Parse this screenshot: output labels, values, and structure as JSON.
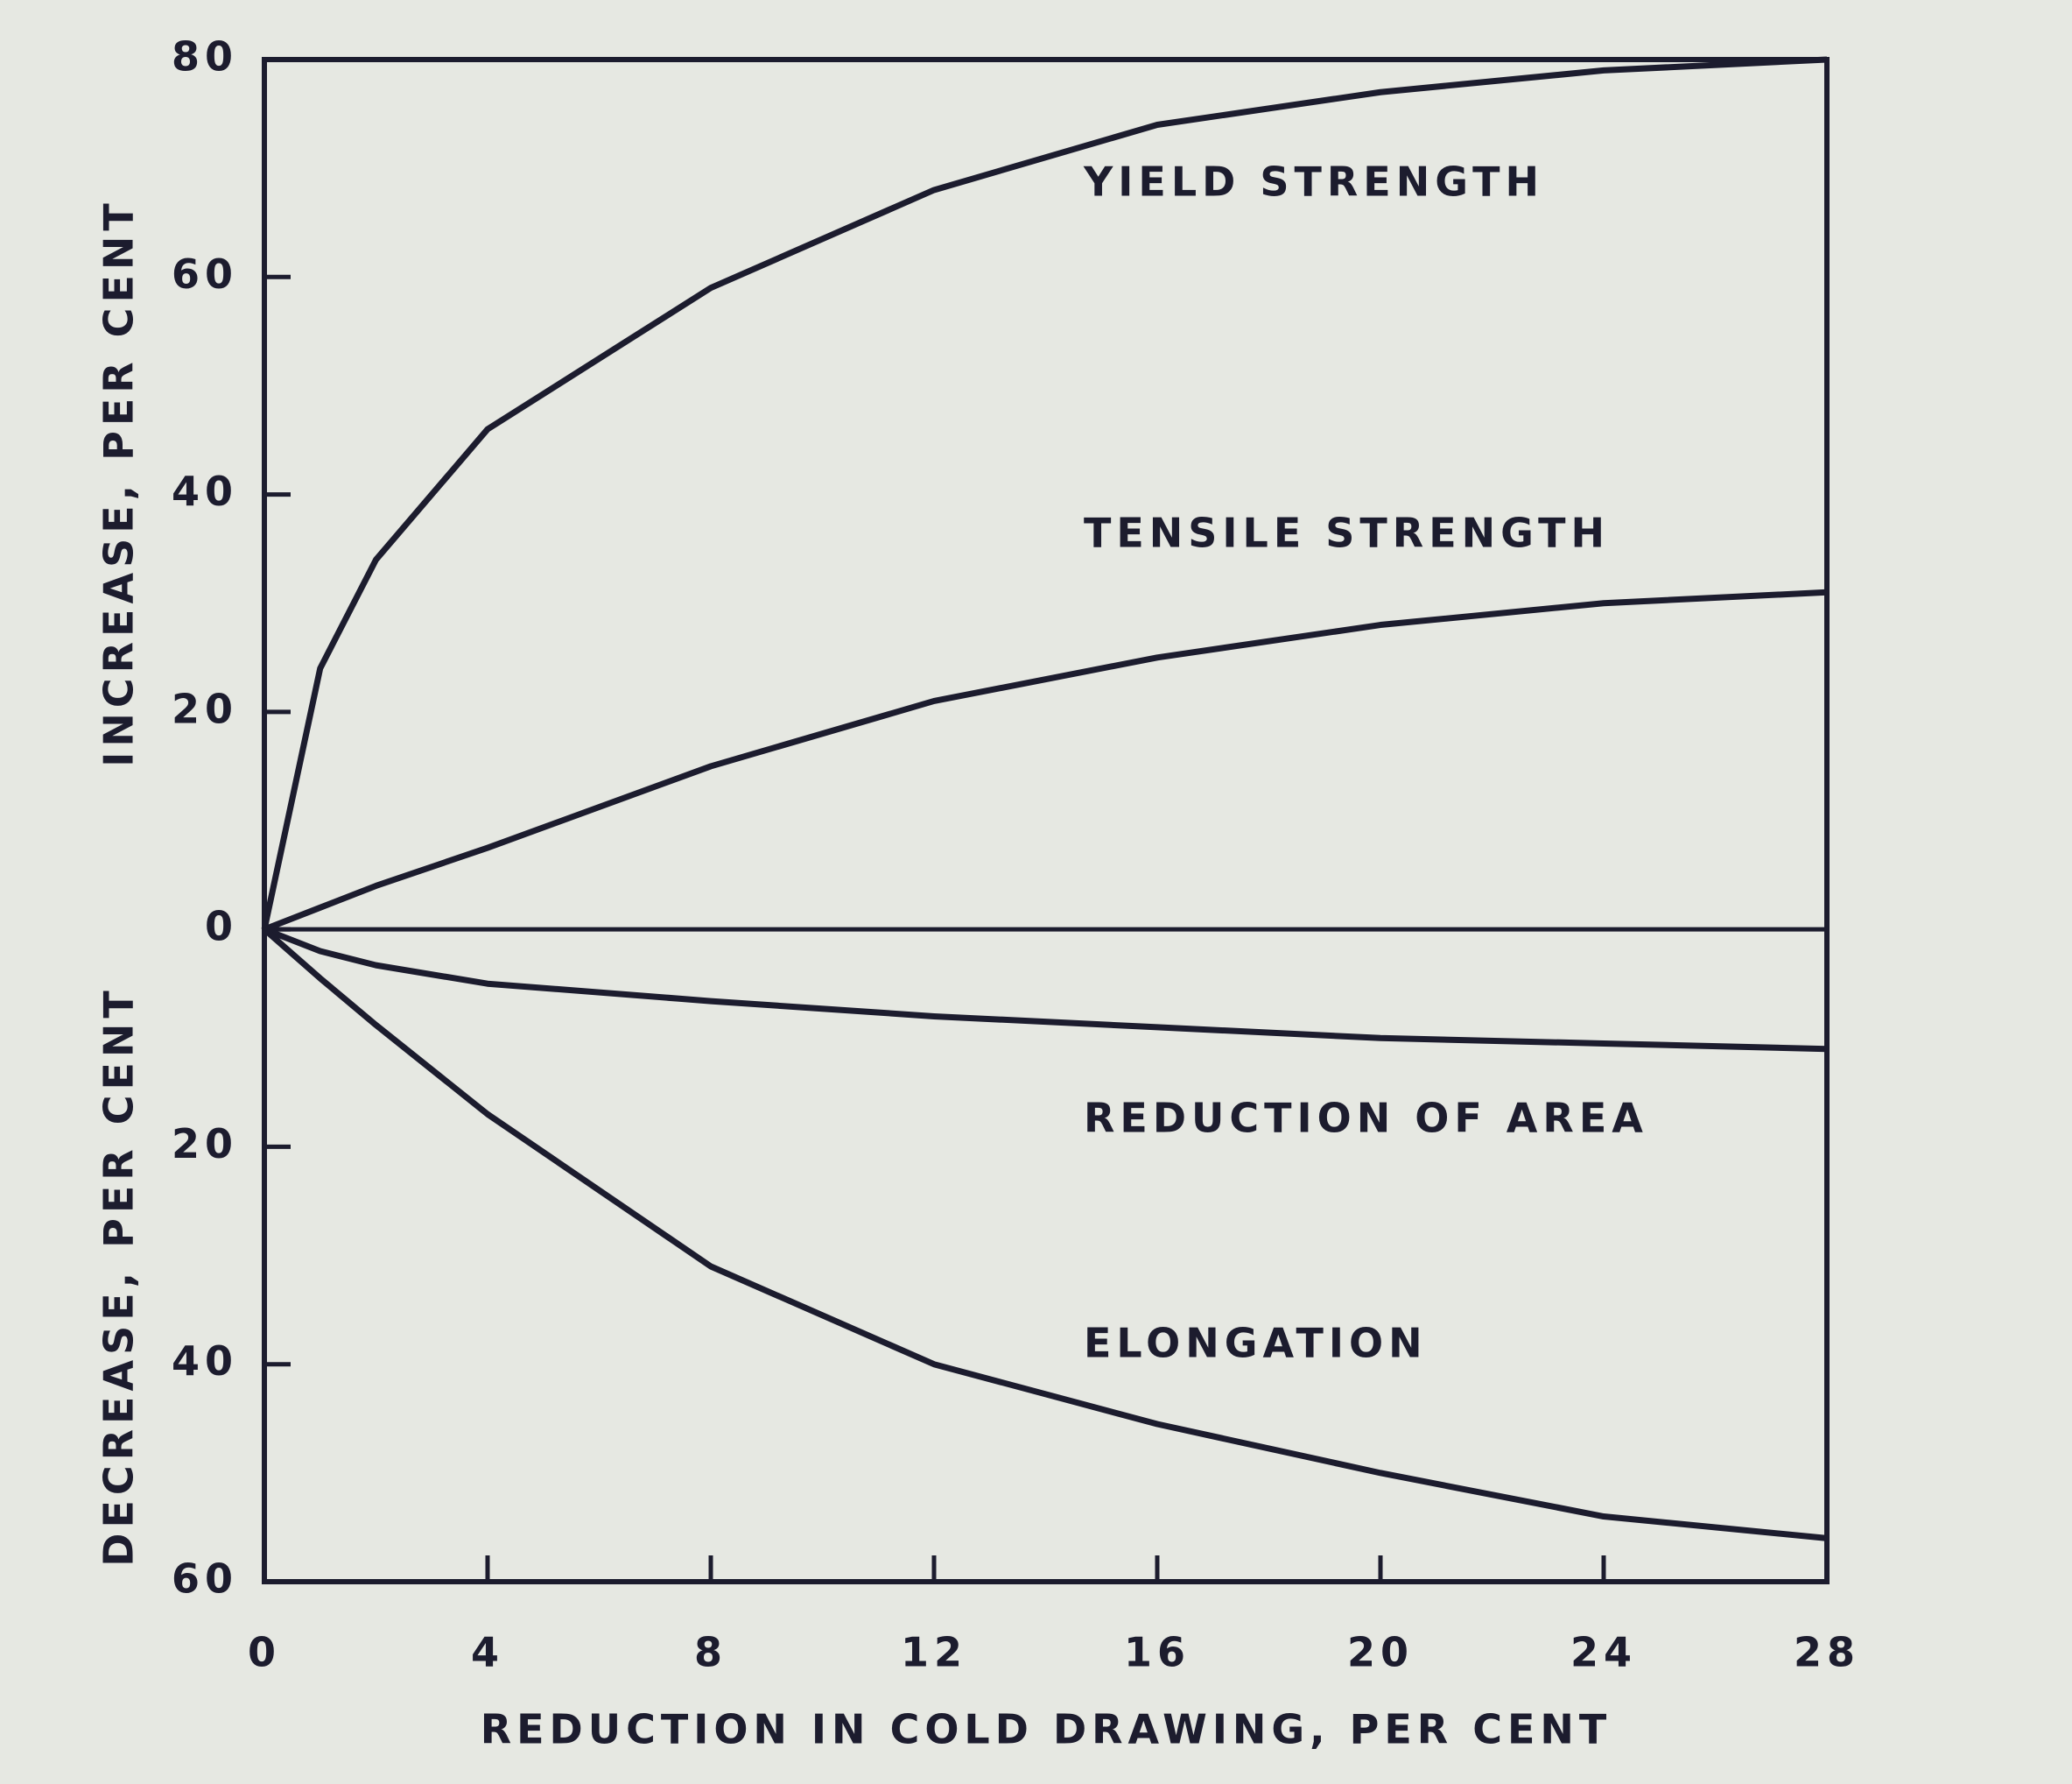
{
  "chart_data": {
    "type": "line",
    "x_label": "REDUCTION IN COLD DRAWING, PER CENT",
    "y_label_upper": "INCREASE, PER CENT",
    "y_label_lower": "DECREASE, PER CENT",
    "x": [
      0,
      1,
      2,
      4,
      8,
      12,
      16,
      20,
      24,
      28
    ],
    "series": [
      {
        "name": "YIELD STRENGTH",
        "color": "#1c1c2e",
        "values": [
          0,
          24,
          34,
          46,
          59,
          68,
          74,
          77,
          79,
          80
        ]
      },
      {
        "name": "TENSILE STRENGTH",
        "color": "#1c1c2e",
        "values": [
          0,
          2,
          4,
          7.5,
          15,
          21,
          25,
          28,
          30,
          31
        ]
      },
      {
        "name": "REDUCTION OF AREA",
        "color": "#1c1c2e",
        "values": [
          0,
          -2,
          -3.3,
          -5,
          -6.6,
          -8,
          -9,
          -10,
          -10.5,
          -11
        ]
      },
      {
        "name": "ELONGATION",
        "color": "#1c1c2e",
        "values": [
          0,
          -4.5,
          -8.8,
          -17,
          -31,
          -40,
          -45.5,
          -50,
          -54,
          -56
        ]
      }
    ],
    "xlim": [
      0,
      28
    ],
    "xticks": [
      0,
      4,
      8,
      12,
      16,
      20,
      24,
      28
    ],
    "ylim": [
      -60,
      80
    ],
    "yticks": [
      {
        "value": -60,
        "label": "60"
      },
      {
        "value": -40,
        "label": "40"
      },
      {
        "value": -20,
        "label": "20"
      },
      0,
      20,
      40,
      60,
      80
    ],
    "grid": false
  }
}
